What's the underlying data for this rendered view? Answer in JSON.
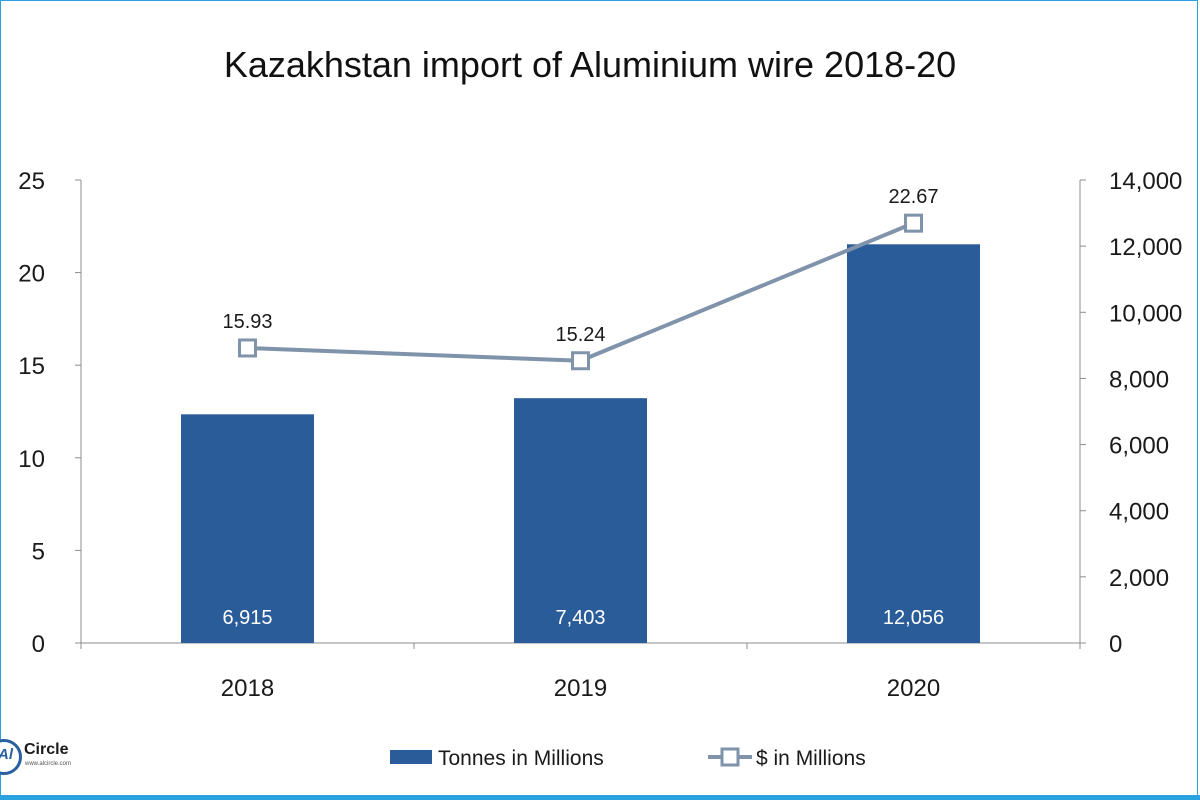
{
  "chart_data": {
    "type": "bar",
    "title": "Kazakhstan import of Aluminium wire 2018-20",
    "categories": [
      "2018",
      "2019",
      "2020"
    ],
    "series": [
      {
        "name": "Tonnes in Millions",
        "type": "bar",
        "axis": "right",
        "values": [
          6915,
          7403,
          12056
        ],
        "labels": [
          "6,915",
          "7,403",
          "12,056"
        ],
        "color": "#2a5c9a"
      },
      {
        "name": "$ in Millions",
        "type": "line",
        "axis": "left",
        "values": [
          15.93,
          15.24,
          22.67
        ],
        "labels": [
          "15.93",
          "15.24",
          "22.67"
        ],
        "color": "#7f93aa",
        "marker": "square"
      }
    ],
    "left_axis": {
      "ylim": [
        0,
        25
      ],
      "ticks": [
        "0",
        "5",
        "10",
        "15",
        "20",
        "25"
      ]
    },
    "right_axis": {
      "ylim": [
        0,
        14000
      ],
      "ticks": [
        "0",
        "2,000",
        "4,000",
        "6,000",
        "8,000",
        "10,000",
        "12,000",
        "14,000"
      ]
    },
    "grid": false,
    "legend": "bottom"
  },
  "logo": {
    "text": "Circle",
    "mark": "Al"
  }
}
